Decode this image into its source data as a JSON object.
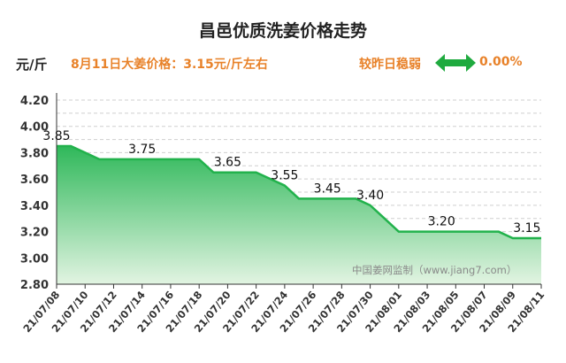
{
  "header": {
    "title": "昌邑优质洗姜价格走势",
    "unit": "元/斤",
    "price_note": "8月11日大姜价格：3.15元/斤左右",
    "compare_label": "较昨日稳弱",
    "change": "0.00%"
  },
  "watermark": "中国姜网监制（www.jiang7.com）",
  "colors": {
    "line": "#22b24c",
    "fill_top": "#2fb85a",
    "fill_bottom": "#e2f4e2",
    "accent_text": "#e8822a",
    "arrow": "#1faa3f"
  },
  "chart_data": {
    "type": "area",
    "title": "昌邑优质洗姜价格走势",
    "ylabel": "元/斤",
    "xlabel": "",
    "ylim": [
      2.8,
      4.2
    ],
    "yticks": [
      "2.80",
      "3.00",
      "3.20",
      "3.40",
      "3.60",
      "3.80",
      "4.00",
      "4.20"
    ],
    "grid": true,
    "x_tick_labels": [
      "21/07/08",
      "21/07/10",
      "21/07/12",
      "21/07/14",
      "21/07/16",
      "21/07/18",
      "21/07/20",
      "21/07/22",
      "21/07/24",
      "21/07/26",
      "21/07/28",
      "21/07/30",
      "21/08/01",
      "21/08/03",
      "21/08/05",
      "21/08/07",
      "21/08/09",
      "21/08/11"
    ],
    "x": [
      "2021-07-08",
      "2021-07-09",
      "2021-07-10",
      "2021-07-11",
      "2021-07-12",
      "2021-07-13",
      "2021-07-14",
      "2021-07-15",
      "2021-07-16",
      "2021-07-17",
      "2021-07-18",
      "2021-07-19",
      "2021-07-20",
      "2021-07-21",
      "2021-07-22",
      "2021-07-23",
      "2021-07-24",
      "2021-07-25",
      "2021-07-26",
      "2021-07-27",
      "2021-07-28",
      "2021-07-29",
      "2021-07-30",
      "2021-07-31",
      "2021-08-01",
      "2021-08-02",
      "2021-08-03",
      "2021-08-04",
      "2021-08-05",
      "2021-08-06",
      "2021-08-07",
      "2021-08-08",
      "2021-08-09",
      "2021-08-10",
      "2021-08-11"
    ],
    "values": [
      3.85,
      3.85,
      3.8,
      3.75,
      3.75,
      3.75,
      3.75,
      3.75,
      3.75,
      3.75,
      3.75,
      3.65,
      3.65,
      3.65,
      3.65,
      3.6,
      3.55,
      3.45,
      3.45,
      3.45,
      3.45,
      3.45,
      3.4,
      3.3,
      3.2,
      3.2,
      3.2,
      3.2,
      3.2,
      3.2,
      3.2,
      3.2,
      3.15,
      3.15,
      3.15
    ],
    "data_labels": [
      {
        "date": "2021-07-08",
        "value": 3.85,
        "text": "3.85"
      },
      {
        "date": "2021-07-14",
        "value": 3.75,
        "text": "3.75"
      },
      {
        "date": "2021-07-20",
        "value": 3.65,
        "text": "3.65"
      },
      {
        "date": "2021-07-24",
        "value": 3.55,
        "text": "3.55"
      },
      {
        "date": "2021-07-27",
        "value": 3.45,
        "text": "3.45"
      },
      {
        "date": "2021-07-30",
        "value": 3.4,
        "text": "3.40"
      },
      {
        "date": "2021-08-04",
        "value": 3.2,
        "text": "3.20"
      },
      {
        "date": "2021-08-10",
        "value": 3.15,
        "text": "3.15"
      }
    ]
  }
}
